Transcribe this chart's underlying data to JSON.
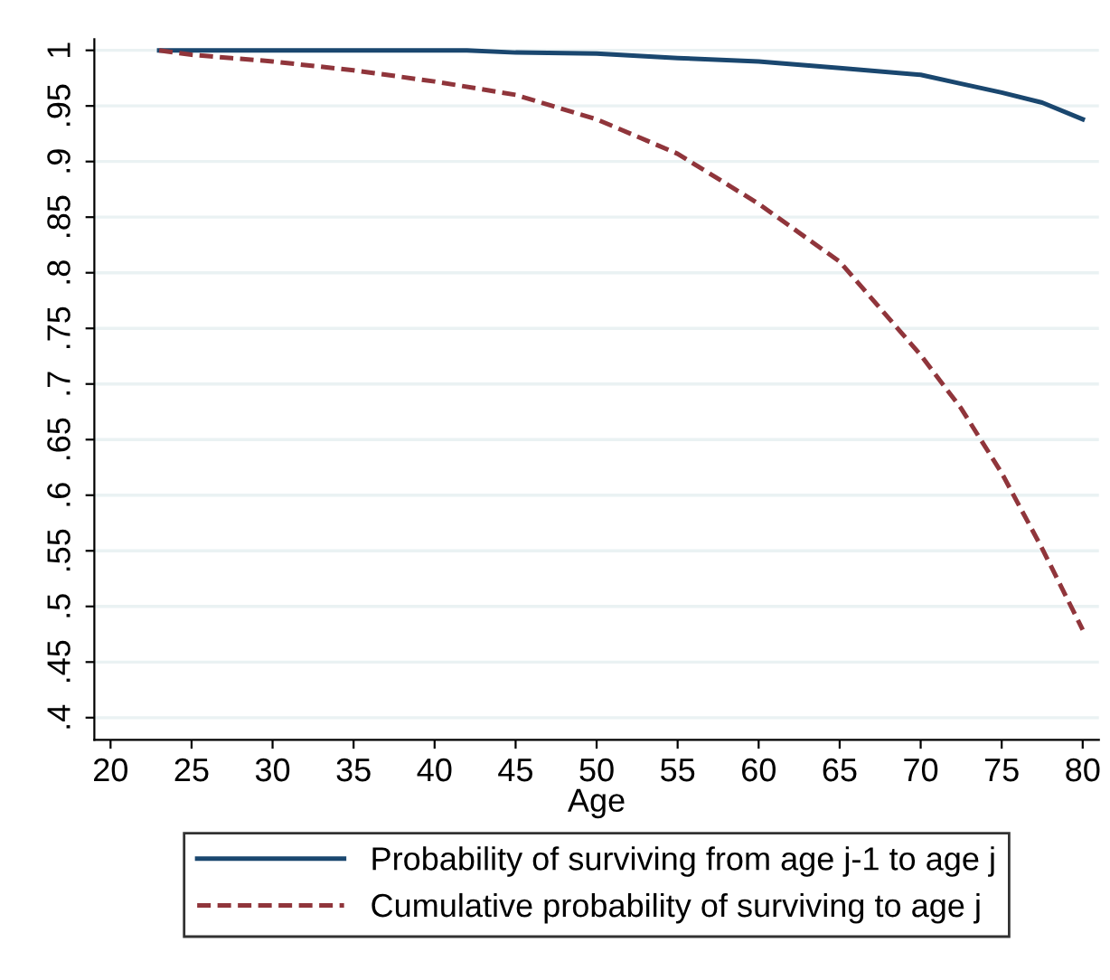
{
  "chart_data": {
    "type": "line",
    "xlabel": "Age",
    "xlim": [
      19,
      81
    ],
    "xticks": [
      20,
      25,
      30,
      35,
      40,
      45,
      50,
      55,
      60,
      65,
      70,
      75,
      80
    ],
    "ylim": [
      0.38,
      1.01
    ],
    "yticks": [
      {
        "value": 0.4,
        "label": ".4"
      },
      {
        "value": 0.45,
        "label": ".45"
      },
      {
        "value": 0.5,
        "label": ".5"
      },
      {
        "value": 0.55,
        "label": ".55"
      },
      {
        "value": 0.6,
        "label": ".6"
      },
      {
        "value": 0.65,
        "label": ".65"
      },
      {
        "value": 0.7,
        "label": ".7"
      },
      {
        "value": 0.75,
        "label": ".75"
      },
      {
        "value": 0.8,
        "label": ".8"
      },
      {
        "value": 0.85,
        "label": ".85"
      },
      {
        "value": 0.9,
        "label": ".9"
      },
      {
        "value": 0.95,
        "label": ".95"
      },
      {
        "value": 1,
        "label": "1"
      }
    ],
    "grid": "y",
    "legend": "bottom",
    "series": [
      {
        "name": "Probability of surviving from age j-1 to age j",
        "color": "#1a476f",
        "line_style": "solid",
        "x": [
          23,
          30,
          35,
          40,
          42,
          45,
          50,
          55,
          60,
          65,
          70,
          72.5,
          75,
          77.5,
          80
        ],
        "values": [
          1,
          1,
          1,
          1,
          1,
          0.998,
          0.997,
          0.993,
          0.99,
          0.984,
          0.978,
          0.97,
          0.962,
          0.953,
          0.938
        ]
      },
      {
        "name": "Cumulative probability of surviving to age j",
        "color": "#90353b",
        "line_style": "dashed",
        "x": [
          23,
          25,
          30,
          35,
          40,
          45,
          50,
          55,
          60,
          65,
          70,
          72.5,
          75,
          77.5,
          80
        ],
        "values": [
          1,
          0.996,
          0.99,
          0.982,
          0.972,
          0.96,
          0.938,
          0.907,
          0.862,
          0.81,
          0.726,
          0.678,
          0.62,
          0.552,
          0.479
        ]
      }
    ]
  }
}
